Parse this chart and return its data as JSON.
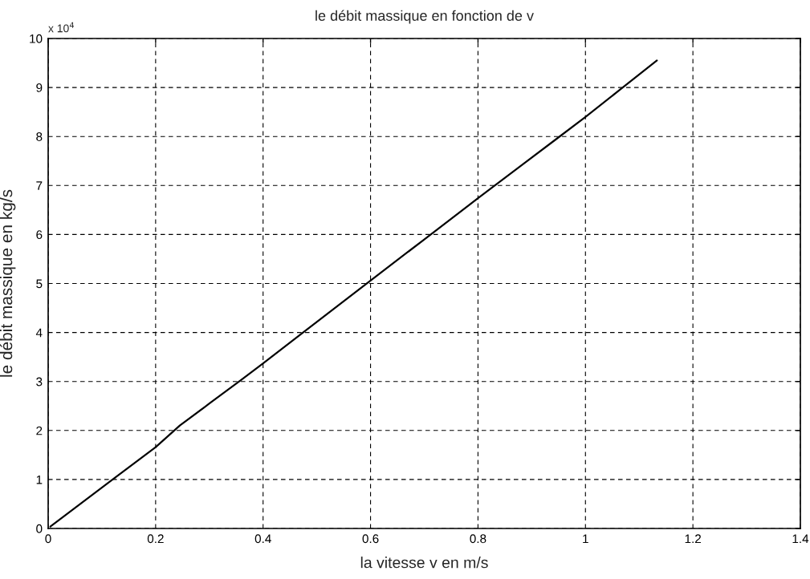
{
  "chart_data": {
    "type": "line",
    "title": "le débit massique en fonction de v",
    "xlabel": "la vitesse v en m/s",
    "ylabel": "le débit massique en kg/s",
    "annotations": [
      "x 10$^{4}$"
    ],
    "series": [
      {
        "color": "#000000",
        "x": [
          0.004,
          0.12,
          0.2,
          0.245,
          0.3,
          0.359,
          0.4,
          0.471,
          0.6,
          0.7,
          0.8,
          0.882,
          0.946,
          1.0,
          1.066,
          1.133
        ],
        "values": [
          0.04,
          1.0,
          1.66,
          2.1,
          2.55,
          3.03,
          3.37,
          3.97,
          5.06,
          5.9,
          6.74,
          7.42,
          7.95,
          8.4,
          8.97,
          9.55
        ]
      }
    ],
    "xlim": [
      0,
      1.4
    ],
    "xticks": [
      0,
      0.2,
      0.4,
      0.6,
      0.8,
      1,
      1.2,
      1.4
    ],
    "ylim": [
      0,
      10
    ],
    "yticks": [
      0,
      1,
      2,
      3,
      4,
      5,
      6,
      7,
      8,
      9,
      10
    ],
    "grid": true,
    "marker": "none",
    "line_style": "solid"
  }
}
